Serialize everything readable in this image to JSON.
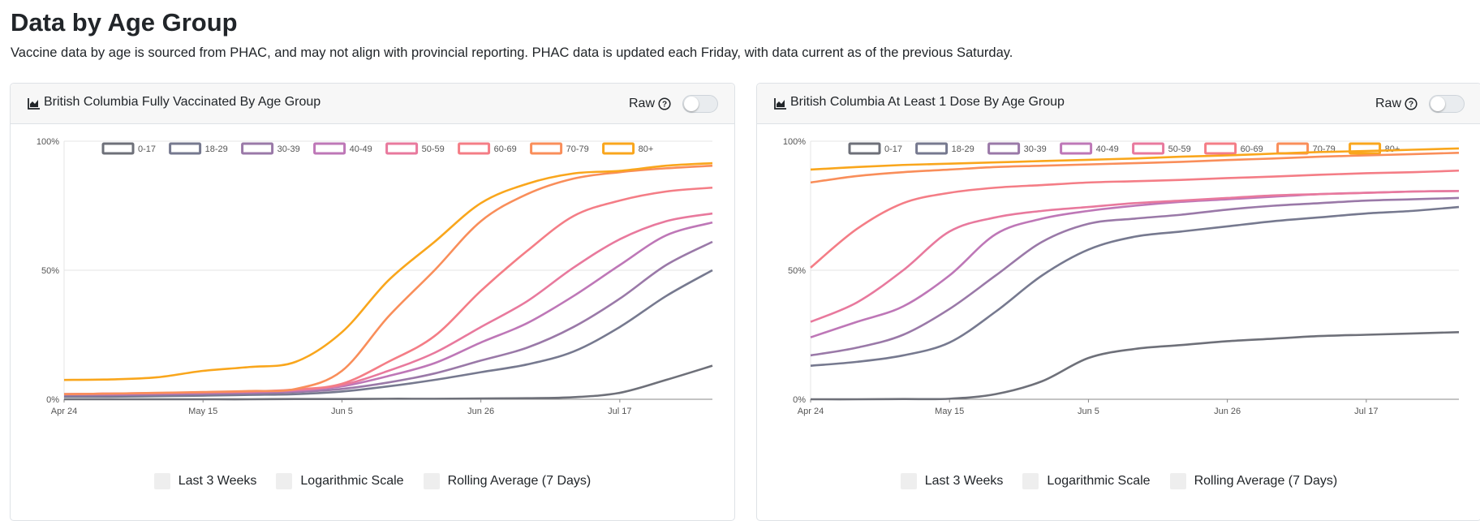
{
  "page": {
    "title": "Data by Age Group",
    "description": "Vaccine data by age is sourced from PHAC, and may not align with provincial reporting. PHAC data is updated each Friday, with data current as of the previous Saturday."
  },
  "icons": {
    "header": "area-chart-icon",
    "help": "question-circle-icon"
  },
  "colors": {
    "0-17": "#6e7079",
    "18-29": "#76798f",
    "30-39": "#9a79a8",
    "40-49": "#be77b7",
    "50-59": "#e8799d",
    "60-69": "#f47d86",
    "70-79": "#f98e5a",
    "80+": "#f9a61c"
  },
  "cards": [
    {
      "title": "British Columbia Fully Vaccinated By Age Group",
      "raw_label": "Raw",
      "raw_enabled": false,
      "options": [
        {
          "label": "Last 3 Weeks",
          "checked": false
        },
        {
          "label": "Logarithmic Scale",
          "checked": false
        },
        {
          "label": "Rolling Average (7 Days)",
          "checked": false
        }
      ]
    },
    {
      "title": "British Columbia At Least 1 Dose By Age Group",
      "raw_label": "Raw",
      "raw_enabled": false,
      "options": [
        {
          "label": "Last 3 Weeks",
          "checked": false
        },
        {
          "label": "Logarithmic Scale",
          "checked": false
        },
        {
          "label": "Rolling Average (7 Days)",
          "checked": false
        }
      ]
    }
  ],
  "chart_data": [
    {
      "type": "line",
      "title": "British Columbia Fully Vaccinated By Age Group",
      "x": [
        "Apr 24",
        "May 1",
        "May 8",
        "May 15",
        "May 22",
        "May 29",
        "Jun 5",
        "Jun 12",
        "Jun 19",
        "Jun 26",
        "Jul 3",
        "Jul 10",
        "Jul 17",
        "Jul 24",
        "Jul 31"
      ],
      "x_ticks": [
        "Apr 24",
        "May 15",
        "Jun 5",
        "Jun 26",
        "Jul 17"
      ],
      "y_ticks": [
        "0%",
        "50%",
        "100%"
      ],
      "ylim": [
        0,
        100
      ],
      "legend_position": "top",
      "grid": true,
      "series": [
        {
          "name": "0-17",
          "values": [
            0,
            0,
            0,
            0,
            0,
            0.1,
            0.1,
            0.2,
            0.2,
            0.3,
            0.4,
            0.8,
            2.5,
            7.5,
            13
          ]
        },
        {
          "name": "18-29",
          "values": [
            1,
            1,
            1.2,
            1.4,
            1.7,
            2,
            3,
            5,
            7.5,
            10.5,
            13.5,
            18.5,
            28,
            40,
            50
          ]
        },
        {
          "name": "30-39",
          "values": [
            1.5,
            1.6,
            1.8,
            2,
            2.3,
            2.8,
            4,
            6.5,
            10,
            15,
            20,
            28,
            39,
            52,
            61
          ]
        },
        {
          "name": "40-49",
          "values": [
            2,
            2,
            2.2,
            2.5,
            2.8,
            3.3,
            5,
            9,
            14,
            22,
            29.5,
            40,
            52,
            63.5,
            68.5
          ]
        },
        {
          "name": "50-59",
          "values": [
            2,
            2.2,
            2.4,
            2.7,
            3,
            3.6,
            5.5,
            11,
            18,
            28,
            38,
            51,
            62,
            69,
            72
          ]
        },
        {
          "name": "60-69",
          "values": [
            2,
            2.2,
            2.4,
            2.7,
            3,
            3.8,
            6,
            14.5,
            24.5,
            42,
            57.5,
            71,
            77,
            80.5,
            82
          ]
        },
        {
          "name": "70-79",
          "values": [
            2,
            2.2,
            2.5,
            2.8,
            3.2,
            4,
            11,
            32,
            50,
            69,
            79.5,
            85.5,
            88,
            89.5,
            90.5
          ]
        },
        {
          "name": "80+",
          "values": [
            7.5,
            7.7,
            8.5,
            11,
            12.5,
            14.5,
            26,
            46,
            61,
            76,
            83.5,
            87.5,
            88.5,
            90.5,
            91.5
          ]
        }
      ]
    },
    {
      "type": "line",
      "title": "British Columbia At Least 1 Dose By Age Group",
      "x": [
        "Apr 24",
        "May 1",
        "May 8",
        "May 15",
        "May 22",
        "May 29",
        "Jun 5",
        "Jun 12",
        "Jun 19",
        "Jun 26",
        "Jul 3",
        "Jul 10",
        "Jul 17",
        "Jul 24",
        "Jul 31"
      ],
      "x_ticks": [
        "Apr 24",
        "May 15",
        "Jun 5",
        "Jun 26",
        "Jul 17"
      ],
      "y_ticks": [
        "0%",
        "50%",
        "100%"
      ],
      "ylim": [
        0,
        100
      ],
      "legend_position": "top",
      "grid": true,
      "series": [
        {
          "name": "0-17",
          "values": [
            0,
            0,
            0.1,
            0.2,
            2,
            7,
            16,
            19.5,
            21,
            22.5,
            23.5,
            24.5,
            25,
            25.5,
            26
          ]
        },
        {
          "name": "18-29",
          "values": [
            13,
            14.5,
            17,
            22,
            34,
            48,
            58,
            63,
            65,
            67,
            69,
            70.5,
            72,
            73,
            74.5
          ]
        },
        {
          "name": "30-39",
          "values": [
            17,
            20,
            25,
            35,
            48,
            61,
            68,
            70,
            71.5,
            73.5,
            75,
            76,
            77,
            77.5,
            78
          ]
        },
        {
          "name": "40-49",
          "values": [
            24,
            30,
            36,
            48,
            64,
            70,
            73,
            75,
            76.5,
            77.5,
            78.5,
            79.5,
            80,
            80.5,
            80.7
          ]
        },
        {
          "name": "50-59",
          "values": [
            30,
            37.5,
            50,
            65,
            70.5,
            73,
            74.5,
            76,
            77,
            78,
            79,
            79.5,
            80,
            80.5,
            80.7
          ]
        },
        {
          "name": "60-69",
          "values": [
            51,
            66,
            76,
            80,
            82,
            83,
            84,
            84.5,
            85,
            85.7,
            86.3,
            87,
            87.6,
            88,
            88.6
          ]
        },
        {
          "name": "70-79",
          "values": [
            84,
            86.5,
            88,
            89,
            90,
            90.5,
            91,
            91.5,
            92,
            92.7,
            93.3,
            94,
            94.5,
            95,
            95.5
          ]
        },
        {
          "name": "80+",
          "values": [
            89,
            90,
            90.8,
            91.3,
            91.8,
            92.3,
            92.8,
            93.3,
            94,
            94.5,
            95.2,
            95.8,
            96.2,
            96.7,
            97.2
          ]
        }
      ]
    }
  ]
}
